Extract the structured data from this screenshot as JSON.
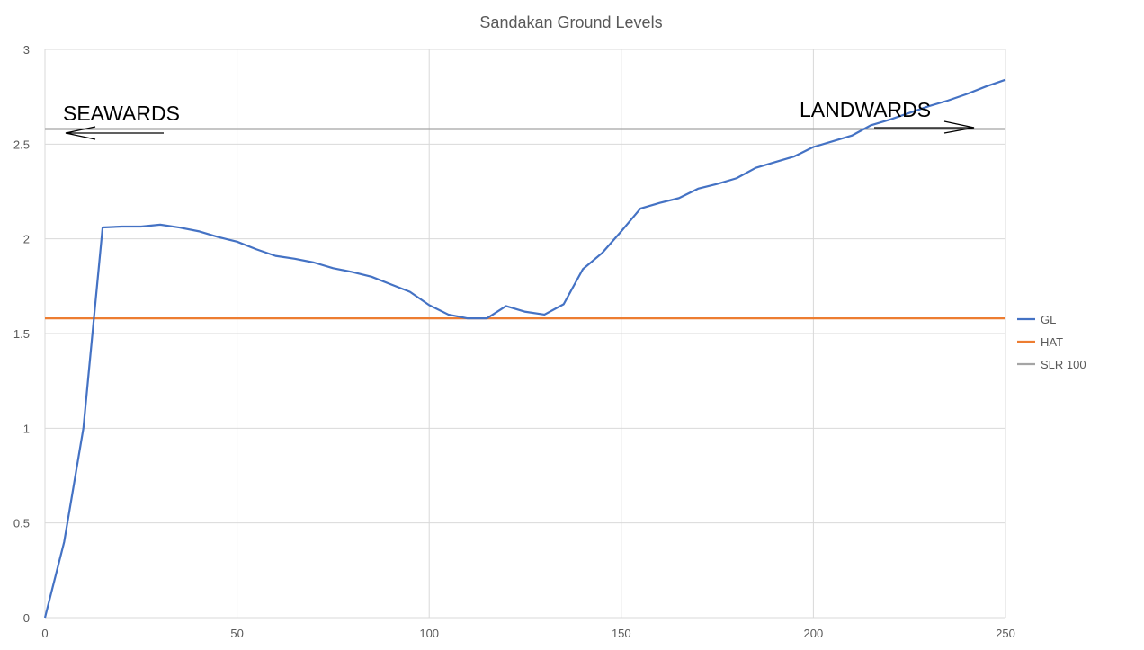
{
  "chart_data": {
    "type": "line",
    "title": "Sandakan Ground Levels",
    "xlabel": "",
    "ylabel": "",
    "xlim": [
      0,
      250
    ],
    "ylim": [
      0,
      3
    ],
    "x_ticks": [
      0,
      50,
      100,
      150,
      200,
      250
    ],
    "y_ticks": [
      0,
      0.5,
      1,
      1.5,
      2,
      2.5,
      3
    ],
    "grid": true,
    "legend_position": "right",
    "series": [
      {
        "name": "GL",
        "color": "#4472C4",
        "x": [
          0,
          5,
          10,
          15,
          20,
          25,
          30,
          35,
          40,
          45,
          50,
          55,
          60,
          65,
          70,
          75,
          80,
          85,
          90,
          95,
          100,
          105,
          110,
          115,
          120,
          125,
          130,
          135,
          140,
          145,
          150,
          155,
          160,
          165,
          170,
          175,
          180,
          185,
          190,
          195,
          200,
          205,
          210,
          215,
          220,
          225,
          230,
          235,
          240,
          245,
          250
        ],
        "y": [
          0,
          0.4,
          1.0,
          2.06,
          2.065,
          2.065,
          2.075,
          2.06,
          2.04,
          2.01,
          1.985,
          1.945,
          1.91,
          1.895,
          1.875,
          1.845,
          1.825,
          1.8,
          1.76,
          1.72,
          1.65,
          1.6,
          1.58,
          1.58,
          1.645,
          1.615,
          1.6,
          1.655,
          1.84,
          1.925,
          2.04,
          2.16,
          2.19,
          2.215,
          2.265,
          2.29,
          2.32,
          2.375,
          2.405,
          2.435,
          2.485,
          2.515,
          2.545,
          2.6,
          2.63,
          2.665,
          2.7,
          2.73,
          2.765,
          2.805,
          2.84
        ]
      },
      {
        "name": "HAT",
        "color": "#ED7D31",
        "x": [
          0,
          250
        ],
        "y": [
          1.58,
          1.58
        ]
      },
      {
        "name": "SLR 100",
        "color": "#A5A5A5",
        "x": [
          0,
          250
        ],
        "y": [
          2.58,
          2.58
        ]
      }
    ],
    "annotations": [
      {
        "text": "SEAWARDS",
        "direction": "left"
      },
      {
        "text": "LANDWARDS",
        "direction": "right"
      }
    ]
  }
}
